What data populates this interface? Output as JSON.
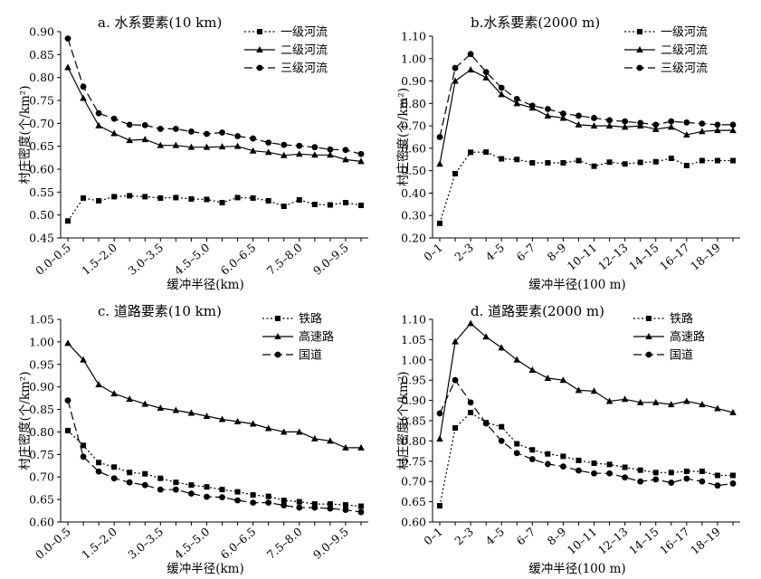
{
  "chart_data": [
    {
      "id": "a",
      "type": "line",
      "title": "a. 水系要素(10 km)",
      "xlabel": "缓冲半径(km)",
      "ylabel": "村庄密度(个/km²)",
      "ylim": [
        0.45,
        0.9
      ],
      "yticks": [
        "0.45",
        "0.50",
        "0.55",
        "0.60",
        "0.65",
        "0.70",
        "0.75",
        "0.80",
        "0.85",
        "0.90"
      ],
      "xtick_labels": [
        "0.0–0.5",
        "1.5–2.0",
        "3.0–3.5",
        "4.5–5.0",
        "6.0–6.5",
        "7.5–8.0",
        "9.0–9.5"
      ],
      "xtick_index": [
        0,
        3,
        6,
        9,
        12,
        15,
        18
      ],
      "legend_position": "top-right",
      "grid": false,
      "series": [
        {
          "name": "一级河流",
          "style": "dotted",
          "marker": "square",
          "values": [
            0.487,
            0.537,
            0.531,
            0.54,
            0.542,
            0.54,
            0.537,
            0.538,
            0.535,
            0.534,
            0.527,
            0.538,
            0.537,
            0.531,
            0.519,
            0.533,
            0.523,
            0.522,
            0.527,
            0.521
          ]
        },
        {
          "name": "二级河流",
          "style": "solid",
          "marker": "triangle",
          "values": [
            0.822,
            0.755,
            0.695,
            0.678,
            0.663,
            0.665,
            0.652,
            0.652,
            0.648,
            0.648,
            0.649,
            0.65,
            0.64,
            0.637,
            0.63,
            0.633,
            0.631,
            0.631,
            0.621,
            0.617
          ]
        },
        {
          "name": "三级河流",
          "style": "dashed",
          "marker": "circle",
          "values": [
            0.885,
            0.78,
            0.722,
            0.71,
            0.697,
            0.696,
            0.688,
            0.688,
            0.682,
            0.677,
            0.68,
            0.672,
            0.667,
            0.658,
            0.653,
            0.651,
            0.648,
            0.643,
            0.642,
            0.633
          ]
        }
      ]
    },
    {
      "id": "b",
      "type": "line",
      "title": "b.水系要素(2000 m)",
      "xlabel": "缓冲半径(100 m)",
      "ylabel": "村庄密度(个/km²)",
      "ylim": [
        0.2,
        1.1
      ],
      "yticks": [
        "0.20",
        "0.30",
        "0.40",
        "0.50",
        "0.60",
        "0.70",
        "0.80",
        "0.90",
        "1.00",
        "1.10"
      ],
      "xtick_labels": [
        "0–1",
        "2–3",
        "4–5",
        "6–7",
        "8–9",
        "10–11",
        "12–13",
        "14–15",
        "16–17",
        "18–19"
      ],
      "xtick_index": [
        0,
        2,
        4,
        6,
        8,
        10,
        12,
        14,
        16,
        18
      ],
      "legend_position": "top-right",
      "grid": false,
      "series": [
        {
          "name": "一级河流",
          "style": "dotted",
          "marker": "square",
          "values": [
            0.265,
            0.487,
            0.582,
            0.583,
            0.553,
            0.55,
            0.535,
            0.535,
            0.535,
            0.545,
            0.52,
            0.538,
            0.53,
            0.537,
            0.54,
            0.555,
            0.523,
            0.545,
            0.545,
            0.545
          ]
        },
        {
          "name": "二级河流",
          "style": "solid",
          "marker": "triangle",
          "values": [
            0.53,
            0.9,
            0.95,
            0.915,
            0.84,
            0.8,
            0.78,
            0.745,
            0.735,
            0.705,
            0.7,
            0.7,
            0.695,
            0.7,
            0.685,
            0.695,
            0.66,
            0.675,
            0.68,
            0.68
          ]
        },
        {
          "name": "三级河流",
          "style": "dashed",
          "marker": "circle",
          "values": [
            0.65,
            0.958,
            1.02,
            0.94,
            0.87,
            0.82,
            0.79,
            0.775,
            0.755,
            0.745,
            0.735,
            0.725,
            0.72,
            0.713,
            0.705,
            0.72,
            0.715,
            0.71,
            0.705,
            0.705
          ]
        }
      ]
    },
    {
      "id": "c",
      "type": "line",
      "title": "c. 道路要素(10 km)",
      "xlabel": "缓冲半径(km)",
      "ylabel": "村庄密度(个/km²)",
      "ylim": [
        0.6,
        1.05
      ],
      "yticks": [
        "0.60",
        "0.65",
        "0.70",
        "0.75",
        "0.80",
        "0.85",
        "0.90",
        "0.95",
        "1.00",
        "1.05"
      ],
      "xtick_labels": [
        "0.0–0.5",
        "1.5–2.0",
        "3.0–3.5",
        "4.5–5.0",
        "6.0–6.5",
        "7.5–8.0",
        "9.0–9.5"
      ],
      "xtick_index": [
        0,
        3,
        6,
        9,
        12,
        15,
        18
      ],
      "legend_position": "top-right",
      "grid": false,
      "series": [
        {
          "name": "铁路",
          "style": "dotted",
          "marker": "square",
          "values": [
            0.803,
            0.77,
            0.732,
            0.722,
            0.71,
            0.707,
            0.697,
            0.688,
            0.682,
            0.678,
            0.672,
            0.667,
            0.66,
            0.657,
            0.648,
            0.645,
            0.64,
            0.64,
            0.638,
            0.635
          ]
        },
        {
          "name": "高速路",
          "style": "solid",
          "marker": "triangle",
          "values": [
            0.997,
            0.96,
            0.905,
            0.885,
            0.873,
            0.862,
            0.853,
            0.848,
            0.842,
            0.835,
            0.828,
            0.823,
            0.818,
            0.808,
            0.8,
            0.8,
            0.785,
            0.78,
            0.765,
            0.765
          ]
        },
        {
          "name": "国道",
          "style": "dashed",
          "marker": "circle",
          "values": [
            0.87,
            0.745,
            0.712,
            0.697,
            0.688,
            0.682,
            0.672,
            0.672,
            0.663,
            0.656,
            0.655,
            0.648,
            0.643,
            0.643,
            0.637,
            0.632,
            0.632,
            0.63,
            0.627,
            0.622
          ]
        }
      ]
    },
    {
      "id": "d",
      "type": "line",
      "title": "d. 道路要素(2000 m)",
      "xlabel": "缓冲半径(100 m)",
      "ylabel": "村庄密度(个/km²)",
      "ylim": [
        0.6,
        1.1
      ],
      "yticks": [
        "0.60",
        "0.65",
        "0.70",
        "0.75",
        "0.80",
        "0.85",
        "0.90",
        "0.95",
        "1.00",
        "1.05",
        "1.10"
      ],
      "xtick_labels": [
        "0–1",
        "2–3",
        "4–5",
        "6–7",
        "8–9",
        "10–11",
        "12–13",
        "14–15",
        "16–17",
        "18–19"
      ],
      "xtick_index": [
        0,
        2,
        4,
        6,
        8,
        10,
        12,
        14,
        16,
        18
      ],
      "legend_position": "top-right",
      "grid": false,
      "series": [
        {
          "name": "铁路",
          "style": "dotted",
          "marker": "square",
          "values": [
            0.64,
            0.832,
            0.87,
            0.845,
            0.835,
            0.793,
            0.778,
            0.768,
            0.762,
            0.752,
            0.745,
            0.742,
            0.735,
            0.728,
            0.722,
            0.722,
            0.725,
            0.725,
            0.715,
            0.715
          ]
        },
        {
          "name": "高速路",
          "style": "solid",
          "marker": "triangle",
          "values": [
            0.805,
            1.045,
            1.09,
            1.057,
            1.03,
            1.0,
            0.975,
            0.955,
            0.95,
            0.925,
            0.923,
            0.898,
            0.903,
            0.895,
            0.895,
            0.89,
            0.898,
            0.89,
            0.88,
            0.87
          ]
        },
        {
          "name": "国道",
          "style": "dashed",
          "marker": "circle",
          "values": [
            0.868,
            0.95,
            0.895,
            0.843,
            0.8,
            0.77,
            0.755,
            0.743,
            0.737,
            0.727,
            0.72,
            0.72,
            0.71,
            0.7,
            0.705,
            0.697,
            0.707,
            0.7,
            0.69,
            0.695
          ]
        }
      ]
    }
  ]
}
